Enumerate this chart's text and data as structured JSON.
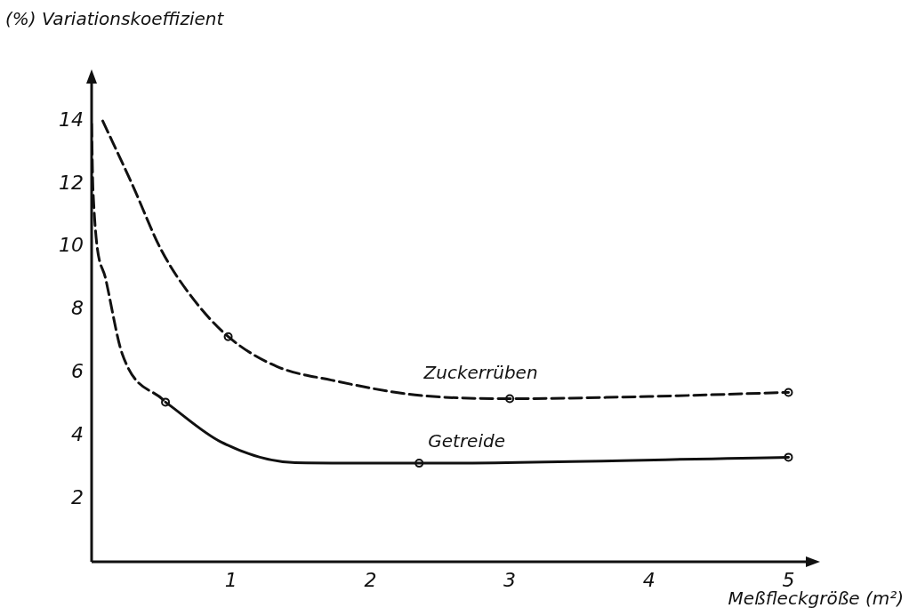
{
  "chart_data": {
    "type": "line",
    "xlabel": "Meßfleckgröße (m²)",
    "ylabel": "(%) Variationskoeffizient",
    "xlim": [
      0,
      5.15
    ],
    "ylim": [
      0,
      15.3
    ],
    "xticks": [
      1,
      2,
      3,
      4,
      5
    ],
    "yticks": [
      2,
      4,
      6,
      8,
      10,
      12,
      14
    ],
    "grid": false,
    "legend": false,
    "series": [
      {
        "name": "Zuckerrüben",
        "color": "#111111",
        "line_style": "dashed",
        "marker": "none",
        "x": [
          0.08,
          0.29,
          0.5,
          0.72,
          0.98,
          1.33,
          1.72,
          2.32,
          3.0,
          4.0,
          5.0
        ],
        "values": [
          14.0,
          12.0,
          9.9,
          8.4,
          7.15,
          6.2,
          5.77,
          5.3,
          5.18,
          5.25,
          5.38
        ]
      },
      {
        "color": "#111111",
        "line_style": "dashed",
        "marker": "none",
        "x": [
          0.0,
          0.01,
          0.1,
          0.22,
          0.53
        ],
        "values": [
          13.9,
          11.8,
          9.0,
          6.6,
          5.07
        ]
      },
      {
        "name": "Getreide",
        "color": "#111111",
        "line_style": "solid",
        "marker": "none",
        "x": [
          0.53,
          0.93,
          1.46,
          2.35,
          5.0
        ],
        "values": [
          5.07,
          3.8,
          3.15,
          3.13,
          3.32
        ]
      },
      {
        "type": "scatter",
        "color": "#111111",
        "marker": "circle",
        "x": [
          0.98,
          3.0,
          5.0
        ],
        "values": [
          7.15,
          5.18,
          5.38
        ]
      },
      {
        "type": "scatter",
        "color": "#111111",
        "marker": "circle",
        "x": [
          0.53,
          2.35,
          5.0
        ],
        "values": [
          5.07,
          3.13,
          3.32
        ]
      }
    ]
  }
}
